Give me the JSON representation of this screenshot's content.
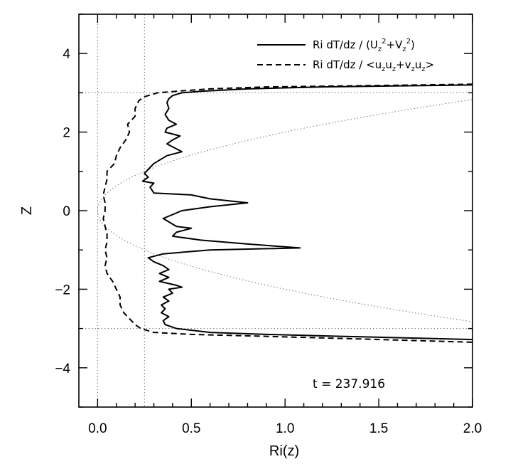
{
  "chart_data": {
    "type": "line",
    "xlabel": "Ri(z)",
    "ylabel": "Z",
    "xlim": [
      -0.1,
      2.0
    ],
    "ylim": [
      -5,
      5
    ],
    "x_ticks": [
      0.0,
      0.5,
      1.0,
      1.5,
      2.0
    ],
    "x_tick_labels": [
      "0.0",
      "0.5",
      "1.0",
      "1.5",
      "2.0"
    ],
    "y_ticks": [
      -4,
      -2,
      0,
      2,
      4
    ],
    "y_tick_labels": [
      "−4",
      "−2",
      "0",
      "2",
      "4"
    ],
    "grid": false,
    "legend_position": "top-right",
    "annotation": "t  =  237.916",
    "legend": [
      {
        "style": "solid",
        "label": "Ri dT/dz / (U_z^2+V_z^2)"
      },
      {
        "style": "dashed",
        "label": "Ri dT/dz / <u_z u_z+v_z u_z>"
      }
    ],
    "reference_lines": {
      "vertical_x": [
        0.0,
        0.25
      ],
      "horizontal_y": [
        3.0,
        -3.0
      ]
    },
    "series": [
      {
        "style": "solid",
        "points": [
          [
            2.0,
            3.2
          ],
          [
            1.2,
            3.15
          ],
          [
            0.8,
            3.1
          ],
          [
            0.55,
            3.04
          ],
          [
            0.45,
            3.0
          ],
          [
            0.4,
            2.93
          ],
          [
            0.38,
            2.85
          ],
          [
            0.37,
            2.75
          ],
          [
            0.38,
            2.6
          ],
          [
            0.36,
            2.45
          ],
          [
            0.38,
            2.3
          ],
          [
            0.42,
            2.2
          ],
          [
            0.37,
            2.1
          ],
          [
            0.36,
            2.0
          ],
          [
            0.44,
            1.9
          ],
          [
            0.4,
            1.8
          ],
          [
            0.37,
            1.7
          ],
          [
            0.45,
            1.5
          ],
          [
            0.37,
            1.4
          ],
          [
            0.3,
            1.2
          ],
          [
            0.27,
            1.05
          ],
          [
            0.25,
            0.95
          ],
          [
            0.27,
            0.85
          ],
          [
            0.24,
            0.75
          ],
          [
            0.3,
            0.7
          ],
          [
            0.28,
            0.6
          ],
          [
            0.3,
            0.45
          ],
          [
            0.5,
            0.4
          ],
          [
            0.6,
            0.3
          ],
          [
            0.8,
            0.2
          ],
          [
            0.6,
            0.1
          ],
          [
            0.45,
            0.0
          ],
          [
            0.35,
            -0.2
          ],
          [
            0.42,
            -0.4
          ],
          [
            0.5,
            -0.45
          ],
          [
            0.42,
            -0.55
          ],
          [
            0.4,
            -0.65
          ],
          [
            0.55,
            -0.75
          ],
          [
            0.8,
            -0.85
          ],
          [
            1.08,
            -0.95
          ],
          [
            0.6,
            -1.0
          ],
          [
            0.35,
            -1.1
          ],
          [
            0.27,
            -1.2
          ],
          [
            0.3,
            -1.3
          ],
          [
            0.35,
            -1.4
          ],
          [
            0.38,
            -1.5
          ],
          [
            0.33,
            -1.6
          ],
          [
            0.38,
            -1.7
          ],
          [
            0.33,
            -1.8
          ],
          [
            0.42,
            -1.9
          ],
          [
            0.45,
            -1.95
          ],
          [
            0.38,
            -2.0
          ],
          [
            0.4,
            -2.1
          ],
          [
            0.35,
            -2.2
          ],
          [
            0.38,
            -2.3
          ],
          [
            0.34,
            -2.4
          ],
          [
            0.36,
            -2.5
          ],
          [
            0.34,
            -2.6
          ],
          [
            0.38,
            -2.7
          ],
          [
            0.35,
            -2.8
          ],
          [
            0.36,
            -2.9
          ],
          [
            0.42,
            -3.0
          ],
          [
            0.6,
            -3.1
          ],
          [
            0.9,
            -3.15
          ],
          [
            1.3,
            -3.2
          ],
          [
            2.0,
            -3.28
          ]
        ]
      },
      {
        "style": "dashed",
        "points": [
          [
            2.0,
            3.22
          ],
          [
            1.4,
            3.18
          ],
          [
            0.9,
            3.15
          ],
          [
            0.6,
            3.1
          ],
          [
            0.45,
            3.05
          ],
          [
            0.32,
            3.0
          ],
          [
            0.25,
            2.9
          ],
          [
            0.22,
            2.8
          ],
          [
            0.2,
            2.6
          ],
          [
            0.2,
            2.4
          ],
          [
            0.16,
            2.2
          ],
          [
            0.17,
            2.0
          ],
          [
            0.15,
            1.8
          ],
          [
            0.12,
            1.6
          ],
          [
            0.1,
            1.4
          ],
          [
            0.09,
            1.2
          ],
          [
            0.05,
            1.0
          ],
          [
            0.05,
            0.8
          ],
          [
            0.04,
            0.6
          ],
          [
            0.03,
            0.4
          ],
          [
            0.04,
            0.2
          ],
          [
            0.04,
            0.0
          ],
          [
            0.03,
            -0.2
          ],
          [
            0.04,
            -0.4
          ],
          [
            0.05,
            -0.6
          ],
          [
            0.05,
            -0.8
          ],
          [
            0.04,
            -1.0
          ],
          [
            0.05,
            -1.2
          ],
          [
            0.04,
            -1.4
          ],
          [
            0.05,
            -1.6
          ],
          [
            0.08,
            -1.8
          ],
          [
            0.1,
            -2.0
          ],
          [
            0.12,
            -2.2
          ],
          [
            0.12,
            -2.4
          ],
          [
            0.14,
            -2.6
          ],
          [
            0.16,
            -2.7
          ],
          [
            0.18,
            -2.8
          ],
          [
            0.2,
            -2.9
          ],
          [
            0.23,
            -3.0
          ],
          [
            0.3,
            -3.1
          ],
          [
            0.5,
            -3.15
          ],
          [
            0.9,
            -3.2
          ],
          [
            1.5,
            -3.28
          ],
          [
            2.0,
            -3.35
          ]
        ]
      }
    ]
  }
}
